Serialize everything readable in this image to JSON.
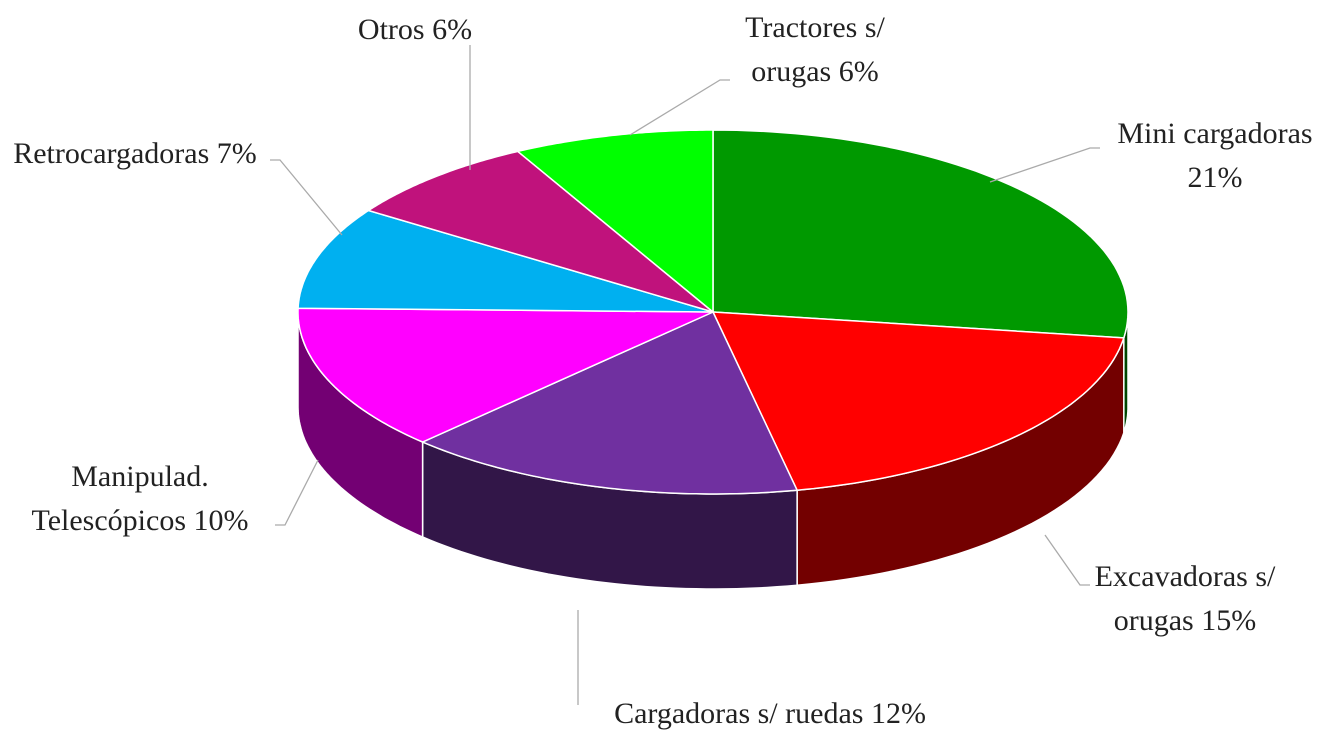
{
  "chart_data": {
    "type": "pie",
    "categories": [
      "Mini cargadoras",
      "Excavadoras s/ orugas",
      "Cargadoras s/ ruedas",
      "Manipulad. Telescópicos",
      "Retrocargadoras",
      "Otros",
      "Tractores s/ orugas"
    ],
    "values": [
      21,
      15,
      12,
      10,
      7,
      6,
      6
    ],
    "value_labels": [
      "21%",
      "15%",
      "12%",
      "10%",
      "7%",
      "6%",
      "6%"
    ],
    "colors": [
      "#009900",
      "#ff0000",
      "#7030a0",
      "#ff00ff",
      "#00b0f0",
      "#c0127c",
      "#00ff00"
    ]
  }
}
